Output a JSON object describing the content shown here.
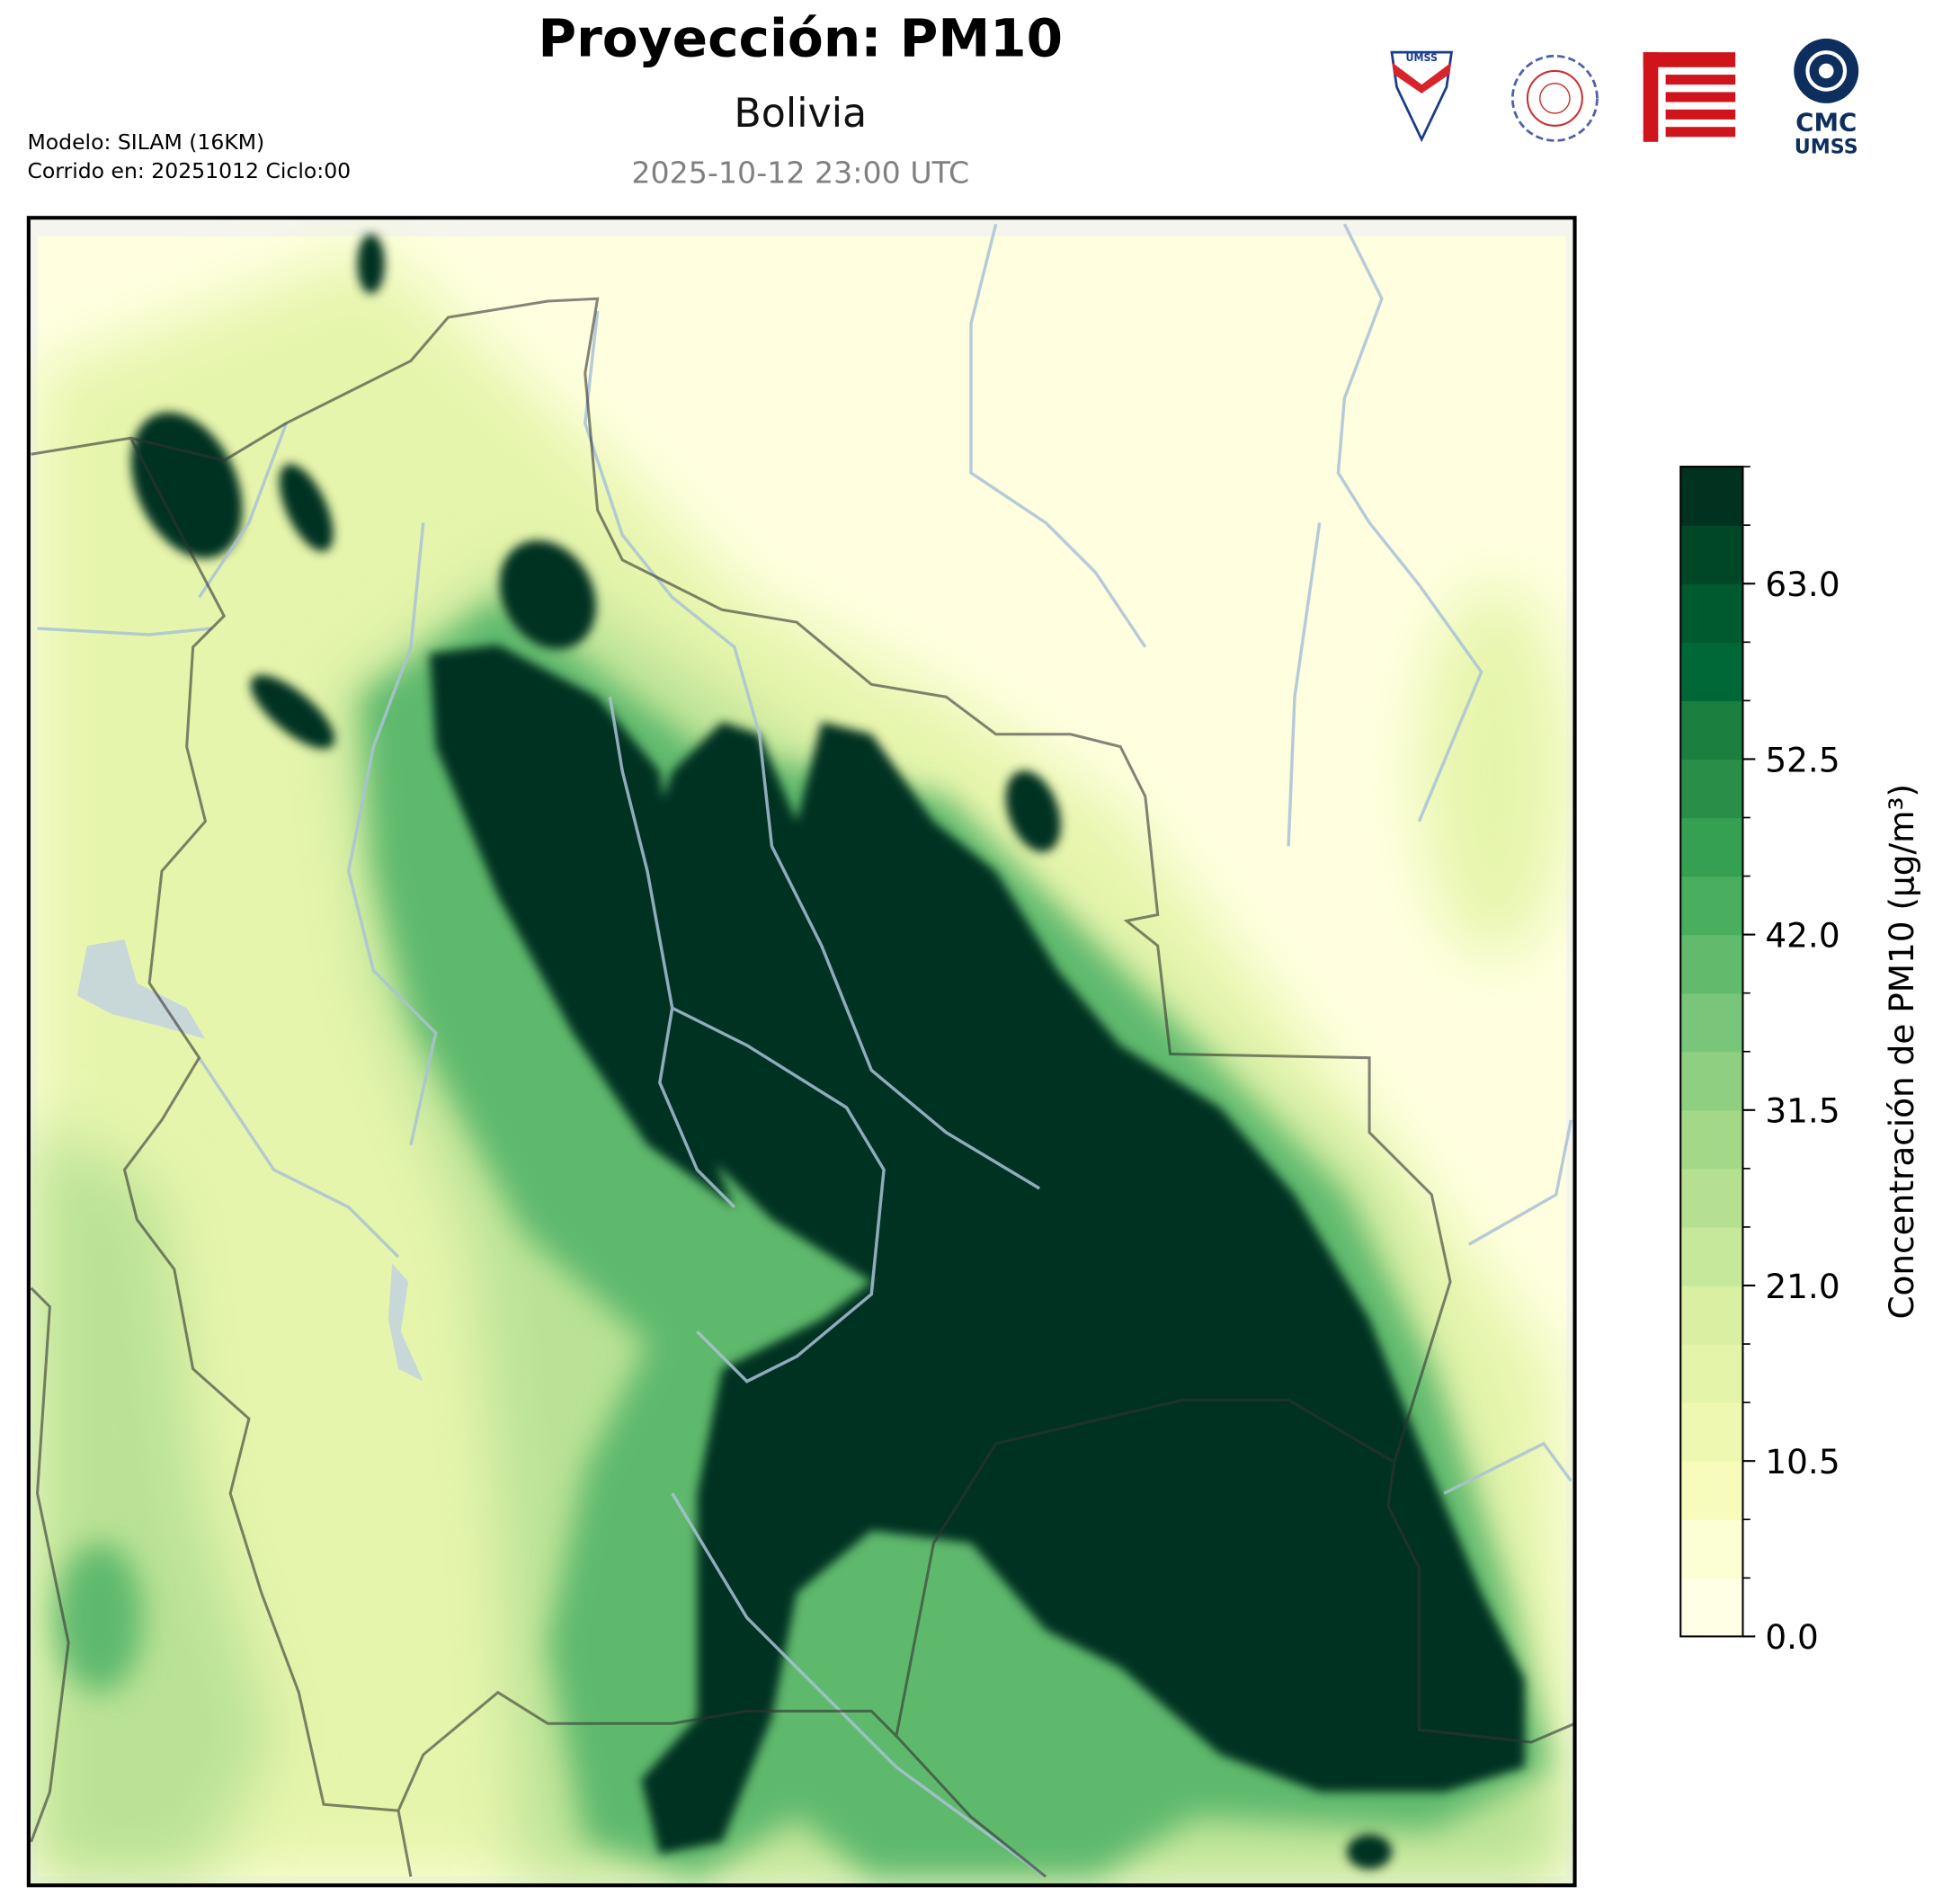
{
  "header": {
    "title": "Proyección: PM10",
    "subtitle": "Bolivia",
    "timestamp": "2025-10-12 23:00 UTC",
    "model": "Modelo: SILAM (16KM)",
    "run": "Corrido en: 20251012 Ciclo:00"
  },
  "logos": {
    "shield": "UMSS",
    "cmc": "CMC",
    "umss": "UMSS"
  },
  "colorbar": {
    "label": "Concentración de PM10 (µg/m³)",
    "clim": [
      0,
      70
    ],
    "levels": [
      0,
      3.5,
      7,
      10.5,
      14,
      17.5,
      21,
      24.5,
      28,
      31.5,
      35,
      38.5,
      42,
      45.5,
      49,
      52.5,
      56,
      59.5,
      63,
      66.5,
      70
    ],
    "colors": [
      "#ffffe5",
      "#fcfed3",
      "#f7fcbc",
      "#eef8b1",
      "#e4f4a9",
      "#d9f0a3",
      "#c6e89b",
      "#b5e091",
      "#a3d889",
      "#8fcf81",
      "#79c67a",
      "#62ba6c",
      "#4aae5f",
      "#36a052",
      "#288e48",
      "#1b7f3f",
      "#006837",
      "#005a30",
      "#004727",
      "#00331f"
    ],
    "ticks": [
      {
        "value": 0,
        "label": "0.0"
      },
      10.5,
      {
        "value": 21,
        "label": "21.0"
      },
      31.5,
      {
        "value": 42,
        "label": "42.0"
      },
      52.5,
      {
        "value": 63,
        "label": "63.0"
      }
    ]
  }
}
